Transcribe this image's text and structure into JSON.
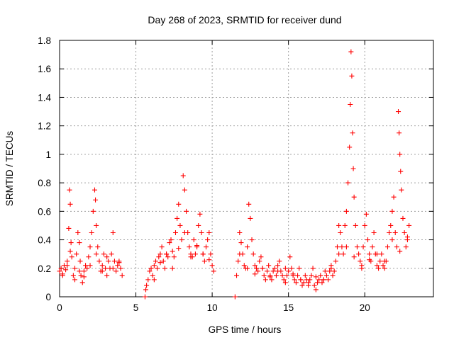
{
  "chart_data": {
    "type": "scatter",
    "title": "Day 268 of 2023, SRMTID for receiver dund",
    "xlabel": "GPS time / hours",
    "ylabel": "SRMTID / TECUs",
    "xlim": [
      0,
      24.5
    ],
    "ylim": [
      0,
      1.8
    ],
    "xticks": [
      0,
      5,
      10,
      15,
      20
    ],
    "xtick_labels": [
      "0",
      "5",
      "10",
      "15",
      "20"
    ],
    "yticks": [
      0,
      0.2,
      0.4,
      0.6,
      0.8,
      1.0,
      1.2,
      1.4,
      1.6,
      1.8
    ],
    "ytick_labels": [
      "0",
      "0.2",
      "0.4",
      "0.6",
      "0.8",
      "1",
      "1.2",
      "1.4",
      "1.6",
      "1.8"
    ],
    "grid": true,
    "marker": "+",
    "color": "#ff0000",
    "series": [
      {
        "name": "SRMTID",
        "x": [
          0.0,
          0.1,
          0.2,
          0.3,
          0.4,
          0.5,
          0.6,
          0.65,
          0.7,
          0.75,
          0.8,
          0.9,
          1.0,
          1.1,
          1.2,
          1.3,
          1.35,
          1.4,
          1.5,
          1.6,
          1.7,
          1.8,
          1.9,
          2.0,
          2.1,
          2.2,
          2.3,
          2.35,
          2.4,
          2.5,
          2.6,
          2.7,
          2.8,
          2.9,
          3.0,
          3.1,
          3.2,
          3.3,
          3.4,
          3.5,
          3.6,
          3.7,
          3.8,
          3.9,
          4.0,
          4.1,
          5.6,
          5.65,
          5.7,
          5.8,
          5.9,
          6.0,
          6.1,
          6.2,
          6.3,
          6.4,
          6.5,
          6.6,
          6.7,
          6.8,
          6.9,
          7.0,
          7.1,
          7.2,
          7.3,
          7.4,
          7.5,
          7.6,
          7.7,
          7.8,
          7.9,
          8.0,
          8.1,
          8.2,
          8.3,
          8.4,
          8.5,
          8.6,
          8.7,
          8.8,
          8.9,
          9.0,
          9.1,
          9.2,
          9.3,
          9.4,
          9.5,
          9.6,
          9.7,
          9.8,
          9.9,
          10.0,
          10.1,
          11.5,
          11.6,
          11.7,
          11.8,
          11.9,
          12.0,
          12.1,
          12.2,
          12.3,
          12.4,
          12.5,
          12.6,
          12.7,
          12.8,
          12.9,
          13.0,
          13.1,
          13.2,
          13.3,
          13.4,
          13.5,
          13.6,
          13.7,
          13.8,
          13.9,
          14.0,
          14.1,
          14.2,
          14.3,
          14.4,
          14.5,
          14.6,
          14.7,
          14.8,
          14.9,
          15.0,
          15.1,
          15.2,
          15.3,
          15.4,
          15.5,
          15.6,
          15.7,
          15.8,
          15.9,
          16.0,
          16.1,
          16.2,
          16.3,
          16.4,
          16.5,
          16.6,
          16.7,
          16.8,
          16.9,
          17.0,
          17.1,
          17.2,
          17.3,
          17.4,
          17.5,
          17.6,
          17.7,
          17.8,
          17.9,
          18.0,
          18.1,
          18.2,
          18.3,
          18.4,
          18.5,
          18.6,
          18.7,
          18.8,
          18.9,
          19.0,
          19.05,
          19.1,
          19.15,
          19.2,
          19.25,
          19.3,
          19.4,
          19.5,
          19.6,
          19.7,
          19.8,
          19.9,
          20.0,
          20.1,
          20.2,
          20.3,
          20.4,
          20.5,
          20.6,
          20.7,
          20.8,
          20.9,
          21.0,
          21.1,
          21.2,
          21.3,
          21.4,
          21.5,
          21.6,
          21.7,
          21.8,
          21.9,
          22.0,
          22.1,
          22.2,
          22.25,
          22.3,
          22.35,
          22.4,
          22.5,
          22.6,
          22.7,
          22.8,
          22.9,
          0.2,
          0.5,
          0.7,
          1.0,
          1.3,
          1.6,
          2.0,
          2.4,
          2.8,
          3.1,
          3.5,
          3.9,
          6.2,
          6.6,
          7.0,
          7.4,
          7.8,
          8.2,
          8.6,
          9.0,
          9.4,
          9.8,
          11.8,
          12.3,
          12.8,
          13.3,
          13.8,
          14.3,
          14.8,
          15.3,
          15.8,
          16.3,
          16.8,
          17.3,
          17.8,
          18.3,
          18.8,
          19.3,
          19.8,
          20.3,
          20.8,
          21.3,
          21.8,
          22.3,
          22.8
        ],
        "y": [
          0.18,
          0.2,
          0.16,
          0.22,
          0.19,
          0.25,
          0.48,
          0.75,
          0.65,
          0.38,
          0.28,
          0.15,
          0.12,
          0.3,
          0.45,
          0.38,
          0.25,
          0.15,
          0.1,
          0.18,
          0.22,
          0.2,
          0.28,
          0.35,
          0.45,
          0.6,
          0.75,
          0.68,
          0.5,
          0.35,
          0.25,
          0.18,
          0.22,
          0.3,
          0.2,
          0.15,
          0.25,
          0.2,
          0.3,
          0.45,
          0.25,
          0.18,
          0.22,
          0.25,
          0.2,
          0.15,
          0.0,
          0.05,
          0.08,
          0.12,
          0.18,
          0.2,
          0.15,
          0.22,
          0.25,
          0.2,
          0.28,
          0.3,
          0.35,
          0.25,
          0.2,
          0.3,
          0.28,
          0.38,
          0.4,
          0.32,
          0.28,
          0.45,
          0.55,
          0.65,
          0.5,
          0.4,
          0.85,
          0.75,
          0.6,
          0.45,
          0.35,
          0.3,
          0.28,
          0.4,
          0.3,
          0.35,
          0.5,
          0.58,
          0.45,
          0.3,
          0.25,
          0.35,
          0.4,
          0.45,
          0.3,
          0.22,
          0.18,
          0.0,
          0.15,
          0.25,
          0.45,
          0.38,
          0.3,
          0.22,
          0.2,
          0.35,
          0.65,
          0.55,
          0.4,
          0.3,
          0.22,
          0.2,
          0.18,
          0.25,
          0.28,
          0.2,
          0.15,
          0.12,
          0.18,
          0.22,
          0.15,
          0.12,
          0.18,
          0.2,
          0.15,
          0.22,
          0.25,
          0.18,
          0.15,
          0.12,
          0.2,
          0.15,
          0.18,
          0.28,
          0.2,
          0.15,
          0.12,
          0.1,
          0.15,
          0.2,
          0.12,
          0.08,
          0.1,
          0.15,
          0.12,
          0.08,
          0.12,
          0.15,
          0.2,
          0.08,
          0.05,
          0.1,
          0.12,
          0.15,
          0.1,
          0.12,
          0.18,
          0.15,
          0.12,
          0.18,
          0.2,
          0.15,
          0.18,
          0.25,
          0.35,
          0.5,
          0.45,
          0.35,
          0.3,
          0.5,
          0.6,
          0.8,
          1.05,
          1.35,
          1.72,
          1.55,
          1.15,
          0.9,
          0.7,
          0.5,
          0.35,
          0.3,
          0.25,
          0.2,
          0.35,
          0.5,
          0.58,
          0.4,
          0.3,
          0.25,
          0.35,
          0.45,
          0.3,
          0.22,
          0.2,
          0.25,
          0.3,
          0.22,
          0.2,
          0.25,
          0.35,
          0.45,
          0.5,
          0.6,
          0.7,
          0.45,
          0.35,
          1.3,
          1.15,
          1.0,
          0.88,
          0.75,
          0.55,
          0.45,
          0.35,
          0.4,
          0.5,
          0.15,
          0.22,
          0.32,
          0.2,
          0.18,
          0.14,
          0.22,
          0.3,
          0.18,
          0.28,
          0.2,
          0.24,
          0.12,
          0.24,
          0.3,
          0.2,
          0.34,
          0.45,
          0.28,
          0.36,
          0.3,
          0.26,
          0.3,
          0.2,
          0.16,
          0.2,
          0.14,
          0.18,
          0.1,
          0.16,
          0.12,
          0.1,
          0.14,
          0.12,
          0.22,
          0.3,
          0.35,
          0.28,
          0.22,
          0.26,
          0.3,
          0.25,
          0.4,
          0.32,
          0.42
        ]
      }
    ]
  }
}
